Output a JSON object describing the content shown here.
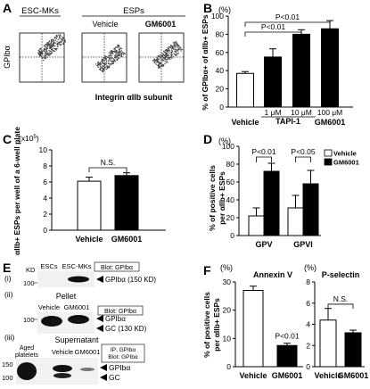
{
  "panels": {
    "A": {
      "letter": "A",
      "labels": [
        "ESC-MKs",
        "ESPs",
        "Vehicle",
        "GM6001"
      ],
      "ylabel": "GPIbα",
      "xlabel": "Integrin αIIb subunit",
      "plots": [
        {
          "name": "ESC-MKs",
          "cluster": "diagonal-upper-right"
        },
        {
          "name": "Vehicle",
          "cluster": "diagonal-upper-right"
        },
        {
          "name": "GM6001",
          "cluster": "diagonal-upper-right"
        }
      ]
    },
    "B": {
      "letter": "B",
      "unit": "(%)",
      "group_label": "TAPI-1"
    },
    "C": {
      "letter": "C",
      "multiplier": "(x10",
      "multiplier_exp": "5",
      "multiplier_close": ")"
    },
    "D": {
      "letter": "D",
      "unit": "(%)"
    },
    "E": {
      "letter": "E",
      "kd": "KD",
      "sub_i": {
        "label": "(i)",
        "lanes": [
          "ESCs",
          "ESC-MKs"
        ],
        "blot": "Blot: GPIbα",
        "marker": "100",
        "band": "GPIbα (150 KD)"
      },
      "sub_ii": {
        "label": "(ii)",
        "title": "Pellet",
        "lanes": [
          "Vehicle",
          "GM6001"
        ],
        "blot": "Blot: GPIbα",
        "marker": "100",
        "band1": "GPIbα",
        "band2": "GC (130 KD)"
      },
      "sub_iii": {
        "label": "(iii)",
        "title": "Supernatant",
        "lanes": [
          "Aged",
          "platelets",
          "Vehicle",
          "GM6001"
        ],
        "ip": "IP: GPIbα",
        "blot": "Blot: GPIbα",
        "markers": [
          "150",
          "100"
        ],
        "band1": "GPIbα",
        "band2": "GC"
      }
    },
    "F": {
      "letter": "F",
      "unit_left": "(%)",
      "unit_right": "(%)"
    }
  },
  "chart_data": [
    {
      "panel": "B",
      "type": "bar",
      "categories": [
        "Vehicle",
        "1 μM",
        "10 μM",
        "100 μM"
      ],
      "group_labels": [
        "Vehicle",
        "TAPI-1",
        "GM6001"
      ],
      "values": [
        37,
        55,
        80,
        86
      ],
      "errors": [
        2,
        9,
        5,
        9
      ],
      "colors": [
        "#ffffff",
        "#000000",
        "#000000",
        "#000000"
      ],
      "ylabel": "% of GPIbα+ of αIIb+ ESPs",
      "ylim": [
        0,
        100
      ],
      "yticks": [
        0,
        20,
        40,
        60,
        80,
        100
      ],
      "annotations": [
        {
          "text": "P<0.01",
          "from": 0,
          "to": 2
        },
        {
          "text": "P<0.01",
          "from": 0,
          "to": 3
        }
      ]
    },
    {
      "panel": "C",
      "type": "bar",
      "categories": [
        "Vehicle",
        "GM6001"
      ],
      "values": [
        6.1,
        6.8
      ],
      "errors": [
        0.5,
        0.35
      ],
      "colors": [
        "#ffffff",
        "#000000"
      ],
      "ylabel": "αIIb+ ESPs per well of a 6-well plate",
      "ylim": [
        0,
        10
      ],
      "yticks": [
        0,
        2,
        4,
        6,
        8,
        10
      ],
      "annotations": [
        {
          "text": "N.S.",
          "from": 0,
          "to": 1
        }
      ]
    },
    {
      "panel": "D",
      "type": "bar",
      "categories": [
        "GPV",
        "GPVI"
      ],
      "series": [
        {
          "name": "Vehicle",
          "values": [
            22,
            31
          ],
          "errors": [
            9,
            14
          ],
          "color": "#ffffff"
        },
        {
          "name": "GM6001",
          "values": [
            72,
            58
          ],
          "errors": [
            9,
            15
          ],
          "color": "#000000"
        }
      ],
      "ylabel": "% of positive cells per αIIb+ ESPs",
      "ylim": [
        0,
        100
      ],
      "yticks": [
        0,
        20,
        40,
        60,
        80,
        100
      ],
      "legend": "top-right",
      "annotations": [
        {
          "text": "P<0.01",
          "category": 0
        },
        {
          "text": "P<0.05",
          "category": 1
        }
      ]
    },
    {
      "panel": "F-left",
      "type": "bar",
      "title": "Annexin V",
      "categories": [
        "Vehicle",
        "GM6001"
      ],
      "values": [
        27,
        7.5
      ],
      "errors": [
        1.5,
        0.8
      ],
      "colors": [
        "#ffffff",
        "#000000"
      ],
      "ylabel": "% of positive cells per αIIb+ ESPs",
      "ylim": [
        0,
        30
      ],
      "yticks": [
        0,
        10,
        20,
        30
      ],
      "annotations": [
        {
          "text": "P<0.01",
          "category": 1
        }
      ]
    },
    {
      "panel": "F-right",
      "type": "bar",
      "title": "P-selectin",
      "categories": [
        "Vehicle",
        "GM6001"
      ],
      "values": [
        4.4,
        3.2
      ],
      "errors": [
        1.1,
        0.25
      ],
      "colors": [
        "#ffffff",
        "#000000"
      ],
      "ylim": [
        0,
        8
      ],
      "yticks": [
        0,
        2,
        4,
        6,
        8
      ],
      "annotations": [
        {
          "text": "N.S.",
          "from": 0,
          "to": 1
        }
      ]
    }
  ]
}
